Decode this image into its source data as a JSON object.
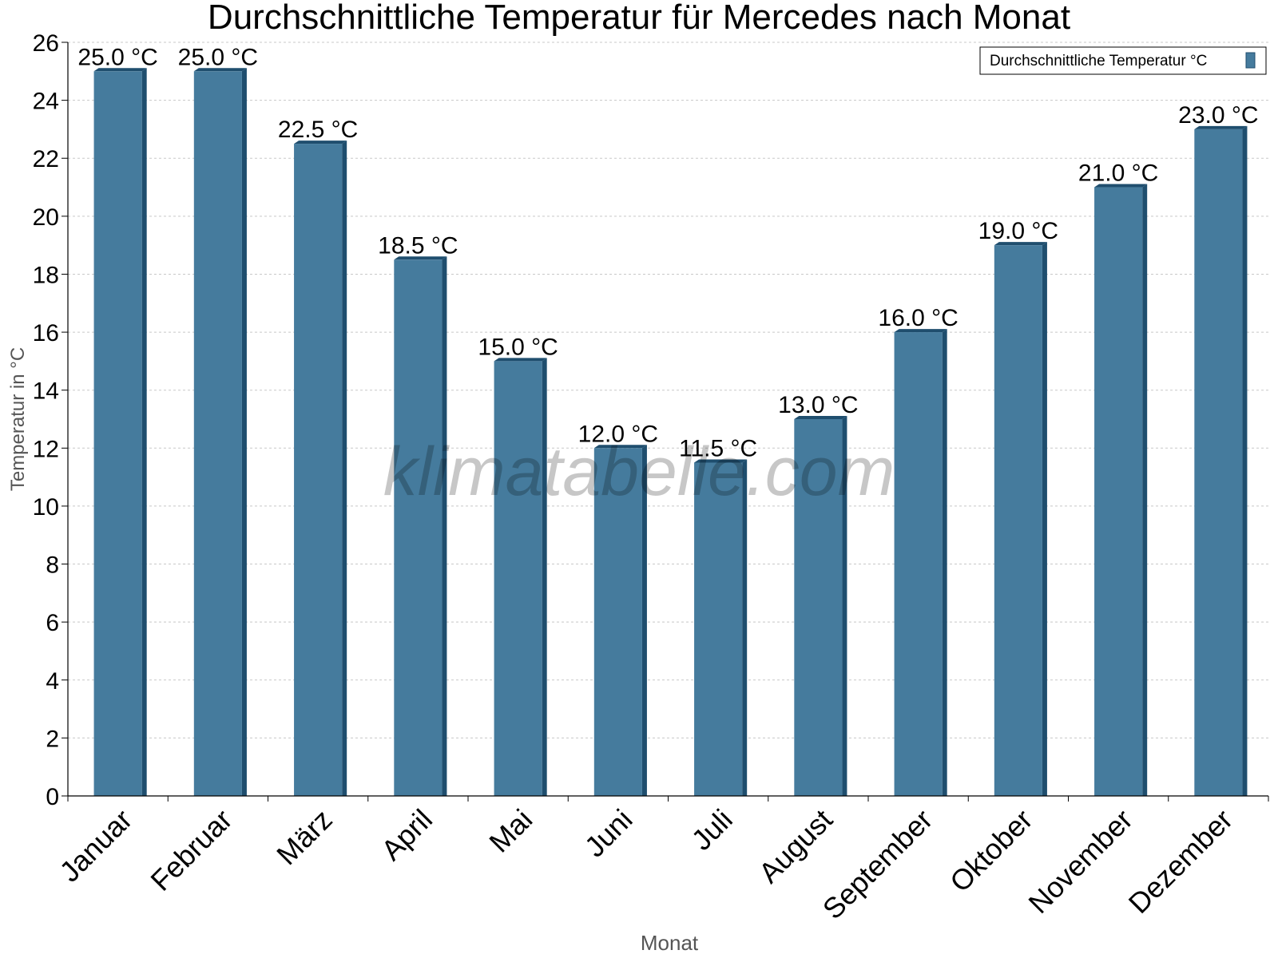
{
  "chart_data": {
    "type": "bar",
    "title": "Durchschnittliche Temperatur für Mercedes nach Monat",
    "xlabel": "Monat",
    "ylabel": "Temperatur in °C",
    "ylim": [
      0,
      26
    ],
    "y_ticks": [
      0,
      2,
      4,
      6,
      8,
      10,
      12,
      14,
      16,
      18,
      20,
      22,
      24,
      26
    ],
    "grid": true,
    "legend_position": "top-right",
    "categories": [
      "Januar",
      "Februar",
      "März",
      "April",
      "Mai",
      "Juni",
      "Juli",
      "August",
      "September",
      "Oktober",
      "November",
      "Dezember"
    ],
    "series": [
      {
        "name": "Durchschnittliche Temperatur °C",
        "color": "#457b9d",
        "values": [
          25.0,
          25.0,
          22.5,
          18.5,
          15.0,
          12.0,
          11.5,
          13.0,
          16.0,
          19.0,
          21.0,
          23.0
        ],
        "labels": [
          "25.0 °C",
          "25.0 °C",
          "22.5 °C",
          "18.5 °C",
          "15.0 °C",
          "12.0 °C",
          "11.5 °C",
          "13.0 °C",
          "16.0 °C",
          "19.0 °C",
          "21.0 °C",
          "23.0 °C"
        ]
      }
    ],
    "watermark": "klimatabelle.com"
  }
}
